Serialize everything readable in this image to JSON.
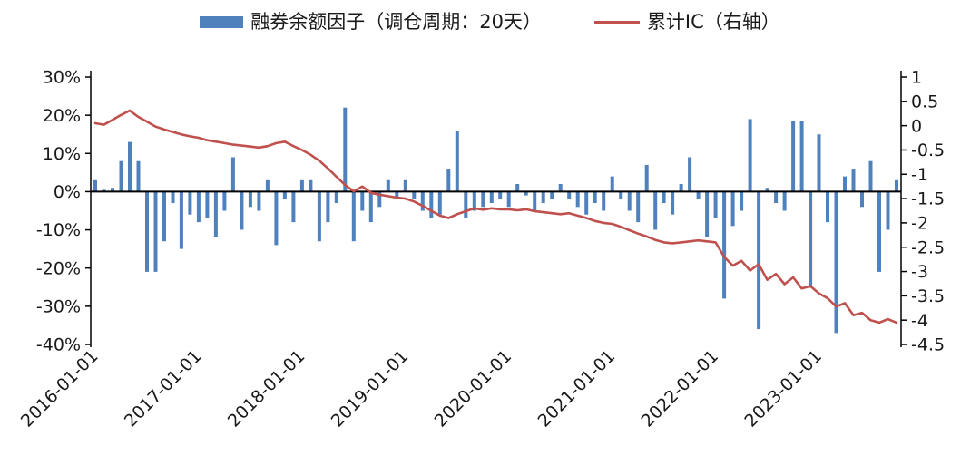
{
  "legend": {
    "bar_label": "融券余额因子（调仓周期：20天）",
    "line_label": "累计IC（右轴）"
  },
  "colors": {
    "bar": "#4f81bd",
    "line": "#c0504d",
    "axis": "#000000",
    "text": "#1a1a1a"
  },
  "chart_data": {
    "type": "combo_bar_line",
    "title": "",
    "legend_position": "top",
    "grid": false,
    "x_tick_labels": [
      "2016-01-01",
      "2017-01-01",
      "2018-01-01",
      "2019-01-01",
      "2020-01-01",
      "2021-01-01",
      "2022-01-01",
      "2023-01-01"
    ],
    "x_tick_month_index": [
      0,
      12,
      24,
      36,
      48,
      60,
      72,
      84
    ],
    "left_axis": {
      "tick_labels": [
        "30%",
        "20%",
        "10%",
        "0%",
        "-10%",
        "-20%",
        "-30%",
        "-40%"
      ],
      "max": 30,
      "min": -40,
      "unit": "%"
    },
    "right_axis": {
      "tick_labels": [
        "1",
        "0.5",
        "0",
        "-0.5",
        "-1",
        "-1.5",
        "-2",
        "-2.5",
        "-3",
        "-3.5",
        "-4",
        "-4.5"
      ],
      "max": 1,
      "min": -4.5
    },
    "x_months": [
      "2016-01",
      "2016-02",
      "2016-03",
      "2016-04",
      "2016-05",
      "2016-06",
      "2016-07",
      "2016-08",
      "2016-09",
      "2016-10",
      "2016-11",
      "2016-12",
      "2017-01",
      "2017-02",
      "2017-03",
      "2017-04",
      "2017-05",
      "2017-06",
      "2017-07",
      "2017-08",
      "2017-09",
      "2017-10",
      "2017-11",
      "2017-12",
      "2018-01",
      "2018-02",
      "2018-03",
      "2018-04",
      "2018-05",
      "2018-06",
      "2018-07",
      "2018-08",
      "2018-09",
      "2018-10",
      "2018-11",
      "2018-12",
      "2019-01",
      "2019-02",
      "2019-03",
      "2019-04",
      "2019-05",
      "2019-06",
      "2019-07",
      "2019-08",
      "2019-09",
      "2019-10",
      "2019-11",
      "2019-12",
      "2020-01",
      "2020-02",
      "2020-03",
      "2020-04",
      "2020-05",
      "2020-06",
      "2020-07",
      "2020-08",
      "2020-09",
      "2020-10",
      "2020-11",
      "2020-12",
      "2021-01",
      "2021-02",
      "2021-03",
      "2021-04",
      "2021-05",
      "2021-06",
      "2021-07",
      "2021-08",
      "2021-09",
      "2021-10",
      "2021-11",
      "2021-12",
      "2022-01",
      "2022-02",
      "2022-03",
      "2022-04",
      "2022-05",
      "2022-06",
      "2022-07",
      "2022-08",
      "2022-09",
      "2022-10",
      "2022-11",
      "2022-12",
      "2023-01",
      "2023-02",
      "2023-03",
      "2023-04",
      "2023-05",
      "2023-06",
      "2023-07",
      "2023-08",
      "2023-09",
      "2023-10"
    ],
    "series": [
      {
        "name": "融券余额因子（调仓周期：20天）",
        "type": "bar",
        "axis": "left",
        "unit": "%",
        "values": [
          3,
          0.5,
          1,
          8,
          13,
          8,
          -21,
          -21,
          -13,
          -3,
          -15,
          -6,
          -8,
          -7,
          -12,
          -5,
          9,
          -10,
          -4,
          -5,
          3,
          -14,
          -2,
          -8,
          3,
          3,
          -13,
          -8,
          -3,
          22,
          -13,
          -5,
          -8,
          -4,
          3,
          -2,
          3,
          -2,
          -5,
          -7,
          -6,
          6,
          16,
          -7,
          -5,
          -4,
          -3,
          -2,
          -4,
          2,
          -1,
          -5,
          -3,
          -2,
          2,
          -2,
          -4,
          -6,
          -3,
          -5,
          4,
          -2,
          -5,
          -8,
          7,
          -10,
          -3,
          -6,
          2,
          9,
          -2,
          -12,
          -7,
          -28,
          -9,
          -5,
          19,
          -36,
          1,
          -3,
          -5,
          18.5,
          18.5,
          -25,
          15,
          -8,
          -37,
          4,
          6,
          -4,
          8,
          -21,
          -10,
          3
        ]
      },
      {
        "name": "累计IC（右轴）",
        "type": "line",
        "axis": "right",
        "values": [
          0.05,
          0.02,
          0.12,
          0.22,
          0.31,
          0.18,
          0.08,
          -0.02,
          -0.08,
          -0.13,
          -0.18,
          -0.22,
          -0.25,
          -0.3,
          -0.33,
          -0.36,
          -0.39,
          -0.41,
          -0.43,
          -0.45,
          -0.42,
          -0.36,
          -0.33,
          -0.42,
          -0.5,
          -0.6,
          -0.72,
          -0.88,
          -1.05,
          -1.22,
          -1.35,
          -1.25,
          -1.38,
          -1.42,
          -1.45,
          -1.48,
          -1.5,
          -1.56,
          -1.65,
          -1.75,
          -1.85,
          -1.9,
          -1.82,
          -1.76,
          -1.7,
          -1.73,
          -1.7,
          -1.72,
          -1.72,
          -1.74,
          -1.72,
          -1.76,
          -1.78,
          -1.8,
          -1.82,
          -1.8,
          -1.85,
          -1.9,
          -1.96,
          -2.0,
          -2.02,
          -2.08,
          -2.15,
          -2.22,
          -2.28,
          -2.35,
          -2.4,
          -2.42,
          -2.4,
          -2.38,
          -2.36,
          -2.38,
          -2.4,
          -2.7,
          -2.88,
          -2.78,
          -2.98,
          -2.85,
          -3.17,
          -3.05,
          -3.26,
          -3.12,
          -3.35,
          -3.3,
          -3.45,
          -3.55,
          -3.72,
          -3.65,
          -3.9,
          -3.85,
          -4.0,
          -4.05,
          -3.98,
          -4.05
        ]
      }
    ]
  }
}
